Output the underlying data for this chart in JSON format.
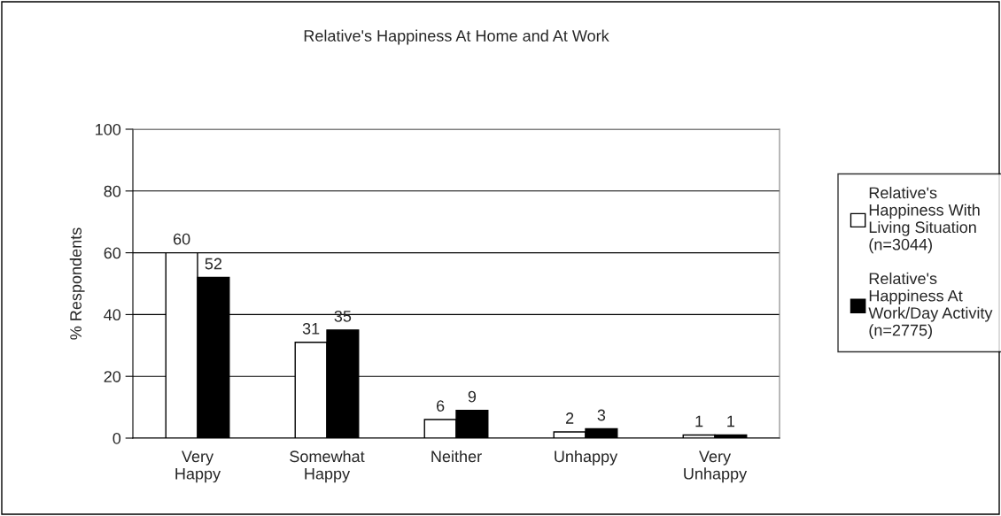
{
  "chart_data": {
    "type": "bar",
    "title": "Relative's Happiness At Home and At Work",
    "ylabel": "% Respondents",
    "categories": [
      "Very\nHappy",
      "Somewhat\nHappy",
      "Neither",
      "Unhappy",
      "Very\nUnhappy"
    ],
    "series": [
      {
        "name": "Relative's\nHappiness With\nLiving Situation\n(n=3044)",
        "color": "#ffffff",
        "values": [
          60,
          31,
          6,
          2,
          1
        ]
      },
      {
        "name": "Relative's\nHappiness At\nWork/Day Activity\n(n=2775)",
        "color": "#000000",
        "values": [
          52,
          35,
          9,
          3,
          1
        ]
      }
    ],
    "ylim": [
      0,
      100
    ],
    "yticks": [
      0,
      20,
      40,
      60,
      80,
      100
    ],
    "grid": "y",
    "legend": "right",
    "data_labels": true
  }
}
